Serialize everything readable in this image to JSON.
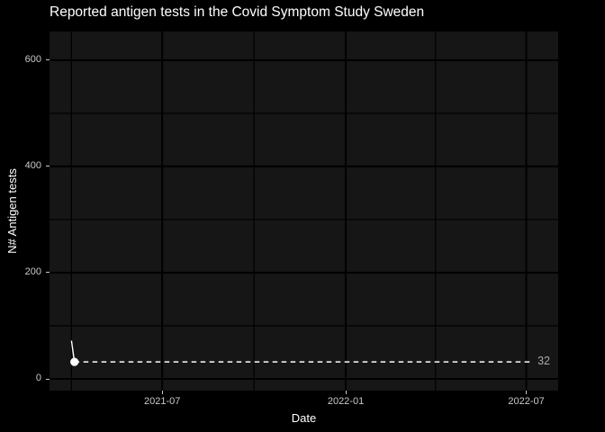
{
  "chart_data": {
    "type": "line",
    "title": "Reported antigen tests in the Covid Symptom Study Sweden",
    "xlabel": "Date",
    "ylabel": "N# Antigen tests",
    "legend": false,
    "grid": true,
    "x_axis": {
      "tick_labels": [
        "2021-07",
        "2022-01",
        "2022-07"
      ],
      "tick_dates": [
        "2021-07-01",
        "2022-01-01",
        "2022-07-01"
      ],
      "minor_dates": [
        "2021-04-01",
        "2021-10-01",
        "2022-04-01"
      ],
      "range": [
        "2021-03-10",
        "2022-08-02"
      ]
    },
    "y_axis": {
      "tick_values": [
        0,
        200,
        400,
        600
      ],
      "minor_values": [
        100,
        300,
        500
      ],
      "range": [
        -22,
        654
      ]
    },
    "series": [
      {
        "name": "Antigen tests",
        "color": "#ffffff",
        "points": [
          {
            "date": "2021-04-01",
            "value": 72
          },
          {
            "date": "2021-04-04",
            "value": 32
          }
        ],
        "end_marker": true
      }
    ],
    "annotation": {
      "label": "32",
      "value": 32,
      "line_start_date": "2021-04-04",
      "line_end_date": "2022-07-06",
      "style": "dashed"
    }
  },
  "colors": {
    "background": "#000000",
    "panel": "#161616",
    "grid_major": "#000000",
    "grid_minor": "#000000",
    "title_text": "#ffffff",
    "axis_title_text": "#ffffff",
    "tick_text": "#c9c9c9",
    "annotation_text": "#a8a8a8",
    "series": "#ffffff"
  }
}
